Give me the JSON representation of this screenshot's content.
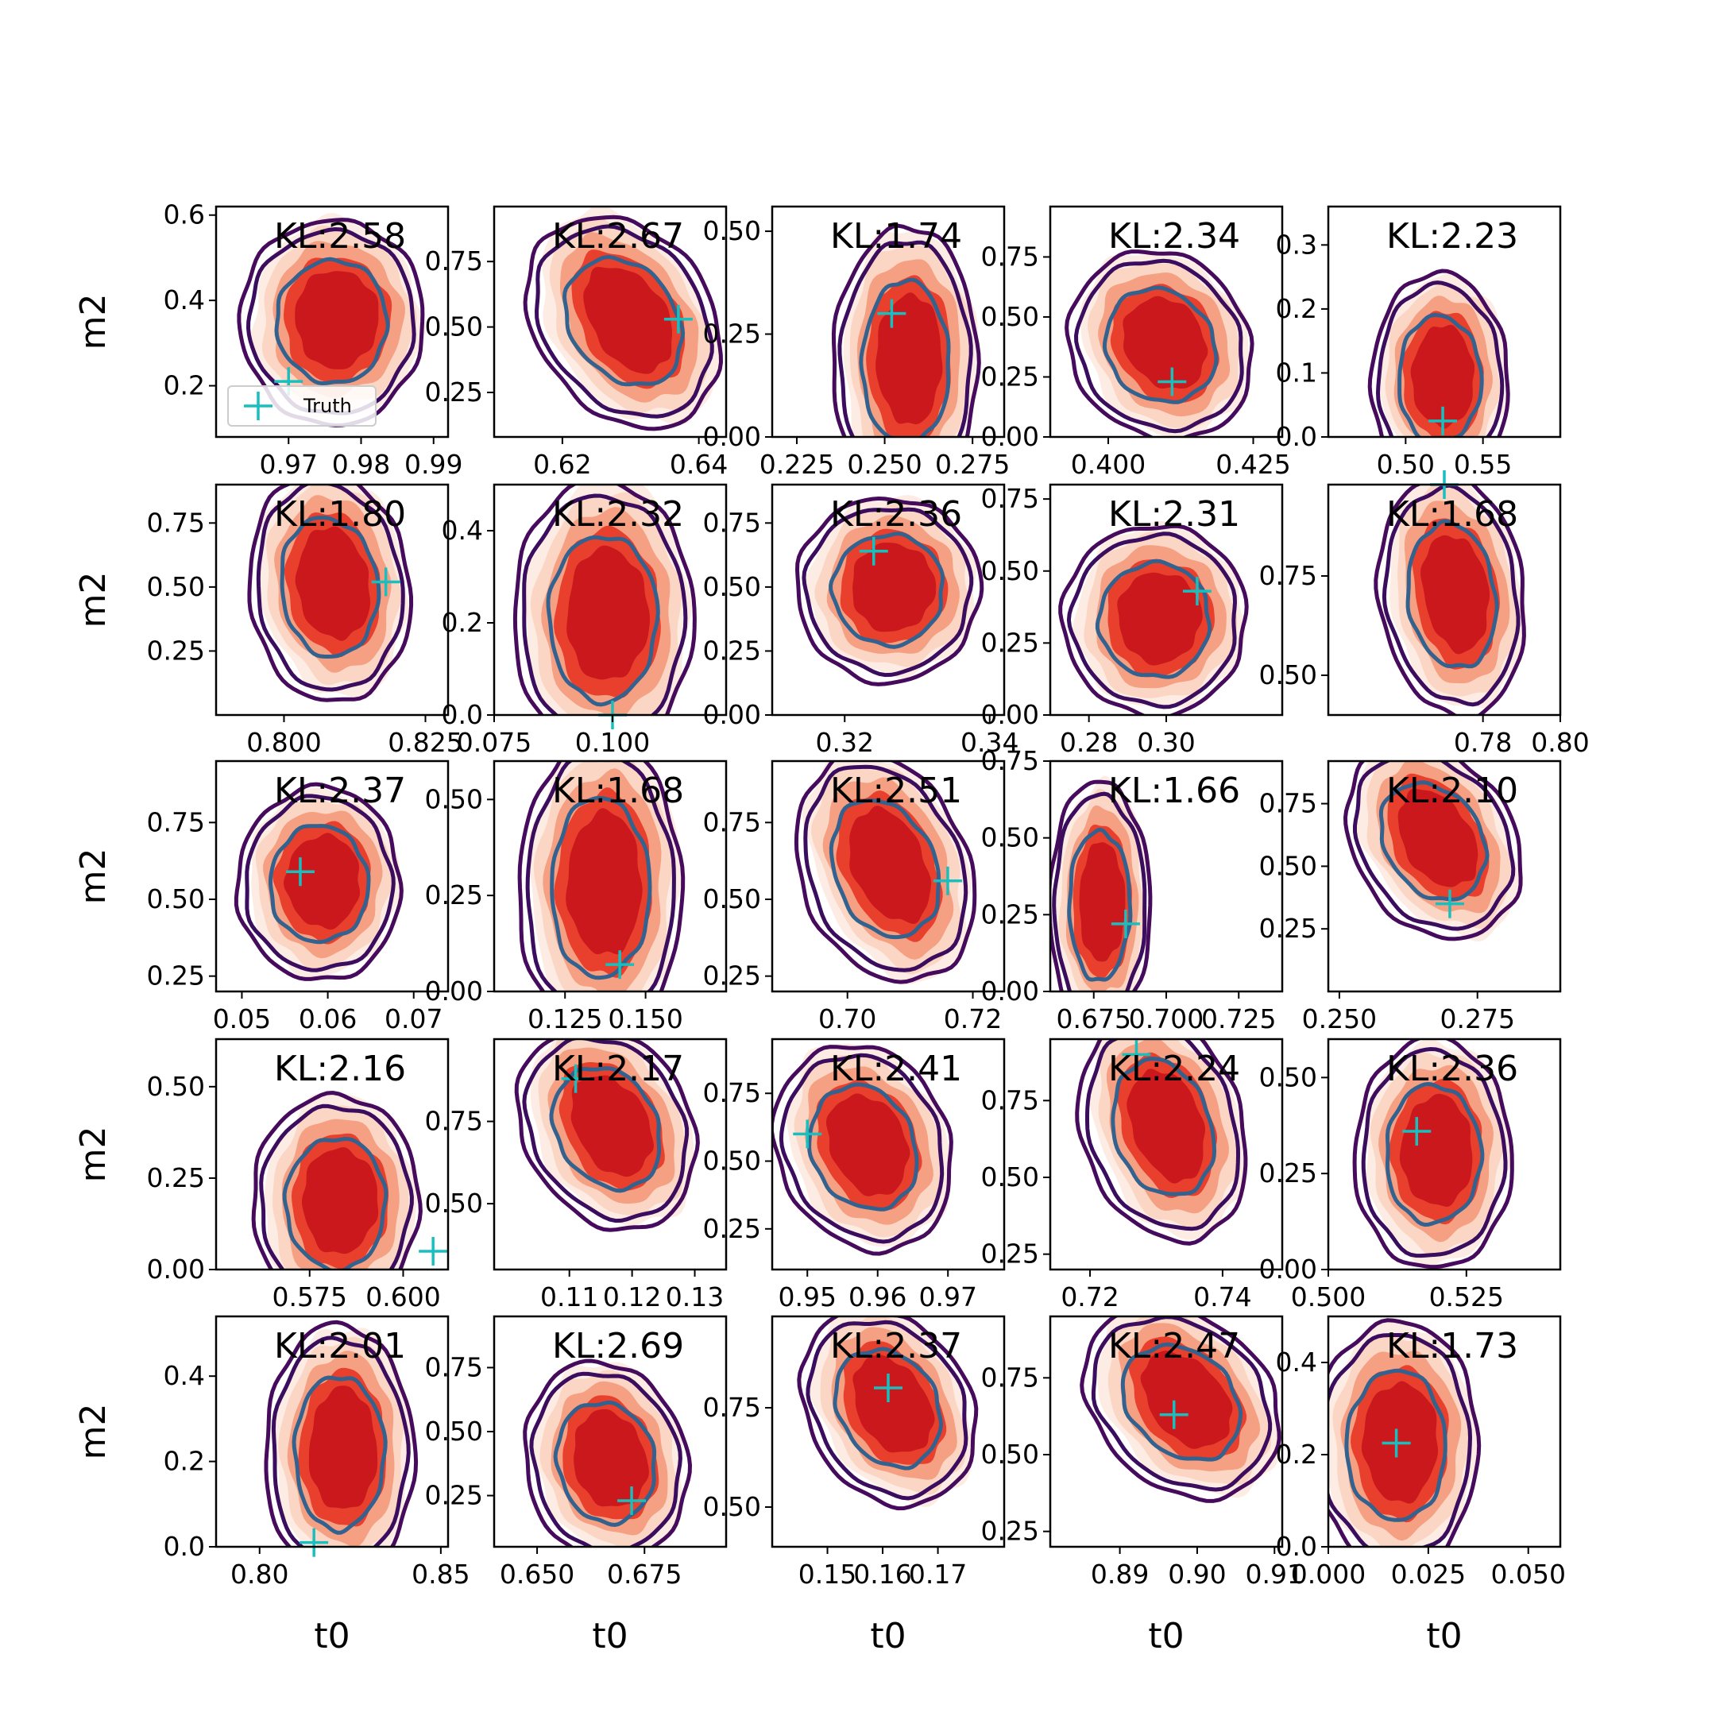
{
  "chart_data": {
    "type": "contour-grid",
    "rows": 5,
    "cols": 5,
    "x_axis_label": "t0",
    "y_axis_label": "m2",
    "legend_label": "Truth",
    "colors": {
      "fill_dark": "#cb181d",
      "fill_mid": "#e8402d",
      "fill_light": "#f6a083",
      "fill_lighter": "#fcd6c4",
      "fill_lightest": "#fdece3",
      "contour_outer": "#460b5c",
      "contour_mid": "#3b0d5f",
      "contour_inner": "#33628e",
      "truth_marker": "#17bfbf"
    },
    "panels": [
      {
        "kl": "KL:2.58",
        "xlim": [
          0.96,
          0.992
        ],
        "ylim": [
          0.08,
          0.62
        ],
        "xticks": [
          0.97,
          0.98,
          0.99
        ],
        "xticklabels": [
          "0.97",
          "0.98",
          "0.99"
        ],
        "yticks": [
          0.2,
          0.4,
          0.6
        ],
        "yticklabels": [
          "0.2",
          "0.4",
          "0.6"
        ],
        "center": [
          0.976,
          0.35
        ],
        "spread": [
          0.008,
          0.16
        ],
        "tilt": 0,
        "truth": [
          0.97,
          0.21
        ],
        "legend": true
      },
      {
        "kl": "KL:2.67",
        "xlim": [
          0.61,
          0.644
        ],
        "ylim": [
          0.08,
          0.96
        ],
        "xticks": [
          0.62,
          0.64
        ],
        "xticklabels": [
          "0.62",
          "0.64"
        ],
        "yticks": [
          0.25,
          0.5,
          0.75
        ],
        "yticklabels": [
          "0.25",
          "0.50",
          "0.75"
        ],
        "center": [
          0.629,
          0.52
        ],
        "spread": [
          0.009,
          0.26
        ],
        "tilt": -0.45,
        "truth": [
          0.637,
          0.53
        ]
      },
      {
        "kl": "KL:1.74",
        "xlim": [
          0.218,
          0.284
        ],
        "ylim": [
          0.0,
          0.56
        ],
        "xticks": [
          0.225,
          0.25,
          0.275
        ],
        "xticklabels": [
          "0.225",
          "0.250",
          "0.275"
        ],
        "yticks": [
          0.0,
          0.25,
          0.5
        ],
        "yticklabels": [
          "0.00",
          "0.25",
          "0.50"
        ],
        "center": [
          0.256,
          0.18
        ],
        "spread": [
          0.013,
          0.22
        ],
        "tilt": 0,
        "truth": [
          0.252,
          0.3
        ]
      },
      {
        "kl": "KL:2.34",
        "xlim": [
          0.39,
          0.43
        ],
        "ylim": [
          0.0,
          0.96
        ],
        "xticks": [
          0.4,
          0.425
        ],
        "xticklabels": [
          "0.400",
          "0.425"
        ],
        "yticks": [
          0.0,
          0.25,
          0.5,
          0.75
        ],
        "yticklabels": [
          "0.00",
          "0.25",
          "0.50",
          "0.75"
        ],
        "center": [
          0.409,
          0.38
        ],
        "spread": [
          0.01,
          0.26
        ],
        "tilt": -0.2,
        "truth": [
          0.411,
          0.23
        ]
      },
      {
        "kl": "KL:2.23",
        "xlim": [
          0.45,
          0.6
        ],
        "ylim": [
          0.0,
          0.36
        ],
        "xticks": [
          0.5,
          0.55
        ],
        "xticklabels": [
          "0.50",
          "0.55"
        ],
        "yticks": [
          0.0,
          0.1,
          0.2,
          0.3
        ],
        "yticklabels": [
          "0.0",
          "0.1",
          "0.2",
          "0.3"
        ],
        "center": [
          0.522,
          0.09
        ],
        "spread": [
          0.028,
          0.11
        ],
        "tilt": 0,
        "truth": [
          0.524,
          0.025
        ]
      },
      {
        "kl": "KL:1.80",
        "xlim": [
          0.788,
          0.829
        ],
        "ylim": [
          0.0,
          0.9
        ],
        "xticks": [
          0.8,
          0.825
        ],
        "xticklabels": [
          "0.800",
          "0.825"
        ],
        "yticks": [
          0.25,
          0.5,
          0.75
        ],
        "yticklabels": [
          "0.25",
          "0.50",
          "0.75"
        ],
        "center": [
          0.808,
          0.5
        ],
        "spread": [
          0.009,
          0.3
        ],
        "tilt": -0.2,
        "truth": [
          0.818,
          0.52
        ]
      },
      {
        "kl": "KL:2.32",
        "xlim": [
          0.075,
          0.124
        ],
        "ylim": [
          0.0,
          0.5
        ],
        "xticks": [
          0.075,
          0.1
        ],
        "xticklabels": [
          "0.075",
          "0.100"
        ],
        "yticks": [
          0.0,
          0.2,
          0.4
        ],
        "yticklabels": [
          "0.0",
          "0.2",
          "0.4"
        ],
        "center": [
          0.098,
          0.21
        ],
        "spread": [
          0.012,
          0.2
        ],
        "tilt": 0,
        "truth": [
          0.1,
          0.0
        ]
      },
      {
        "kl": "KL:2.36",
        "xlim": [
          0.31,
          0.342
        ],
        "ylim": [
          0.0,
          0.9
        ],
        "xticks": [
          0.32,
          0.34
        ],
        "xticklabels": [
          "0.32",
          "0.34"
        ],
        "yticks": [
          0.0,
          0.25,
          0.5,
          0.75
        ],
        "yticklabels": [
          "0.00",
          "0.25",
          "0.50",
          "0.75"
        ],
        "center": [
          0.326,
          0.49
        ],
        "spread": [
          0.008,
          0.24
        ],
        "tilt": 0,
        "truth": [
          0.324,
          0.64
        ]
      },
      {
        "kl": "KL:2.31",
        "xlim": [
          0.27,
          0.33
        ],
        "ylim": [
          0.0,
          0.8
        ],
        "xticks": [
          0.28,
          0.3
        ],
        "xticklabels": [
          "0.28",
          "0.30"
        ],
        "yticks": [
          0.0,
          0.25,
          0.5,
          0.75
        ],
        "yticklabels": [
          "0.00",
          "0.25",
          "0.50",
          "0.75"
        ],
        "center": [
          0.297,
          0.33
        ],
        "spread": [
          0.015,
          0.22
        ],
        "tilt": 0,
        "truth": [
          0.308,
          0.43
        ]
      },
      {
        "kl": "KL:1.68",
        "xlim": [
          0.74,
          0.8
        ],
        "ylim": [
          0.4,
          0.98
        ],
        "xticks": [
          0.78,
          0.8
        ],
        "xticklabels": [
          "0.78",
          "0.80"
        ],
        "yticks": [
          0.5,
          0.75
        ],
        "yticklabels": [
          "0.50",
          "0.75"
        ],
        "center": [
          0.772,
          0.7
        ],
        "spread": [
          0.012,
          0.2
        ],
        "tilt": -0.35,
        "truth": [
          0.77,
          0.98
        ]
      },
      {
        "kl": "KL:2.37",
        "xlim": [
          0.047,
          0.074
        ],
        "ylim": [
          0.2,
          0.95
        ],
        "xticks": [
          0.05,
          0.06,
          0.07
        ],
        "xticklabels": [
          "0.05",
          "0.06",
          "0.07"
        ],
        "yticks": [
          0.25,
          0.5,
          0.75
        ],
        "yticklabels": [
          "0.25",
          "0.50",
          "0.75"
        ],
        "center": [
          0.059,
          0.55
        ],
        "spread": [
          0.006,
          0.21
        ],
        "tilt": 0,
        "truth": [
          0.0568,
          0.59
        ]
      },
      {
        "kl": "KL:1.68",
        "xlim": [
          0.103,
          0.175
        ],
        "ylim": [
          0.0,
          0.6
        ],
        "xticks": [
          0.125,
          0.15
        ],
        "xticklabels": [
          "0.125",
          "0.150"
        ],
        "yticks": [
          0.0,
          0.25,
          0.5
        ],
        "yticklabels": [
          "0.00",
          "0.25",
          "0.50"
        ],
        "center": [
          0.136,
          0.27
        ],
        "spread": [
          0.016,
          0.26
        ],
        "tilt": 0,
        "truth": [
          0.142,
          0.07
        ]
      },
      {
        "kl": "KL:2.51",
        "xlim": [
          0.688,
          0.725
        ],
        "ylim": [
          0.2,
          0.95
        ],
        "xticks": [
          0.7,
          0.72
        ],
        "xticklabels": [
          "0.70",
          "0.72"
        ],
        "yticks": [
          0.25,
          0.5,
          0.75
        ],
        "yticklabels": [
          "0.25",
          "0.50",
          "0.75"
        ],
        "center": [
          0.706,
          0.6
        ],
        "spread": [
          0.009,
          0.24
        ],
        "tilt": -0.5,
        "truth": [
          0.716,
          0.56
        ]
      },
      {
        "kl": "KL:1.66",
        "xlim": [
          0.66,
          0.74
        ],
        "ylim": [
          0.0,
          0.75
        ],
        "xticks": [
          0.675,
          0.7,
          0.725
        ],
        "xticklabels": [
          "0.675",
          "0.700",
          "0.725"
        ],
        "yticks": [
          0.0,
          0.25,
          0.5,
          0.75
        ],
        "yticklabels": [
          "0.00",
          "0.25",
          "0.50",
          "0.75"
        ],
        "center": [
          0.677,
          0.28
        ],
        "spread": [
          0.011,
          0.27
        ],
        "tilt": 0,
        "truth": [
          0.686,
          0.22
        ]
      },
      {
        "kl": "KL:2.10",
        "xlim": [
          0.248,
          0.29
        ],
        "ylim": [
          0.0,
          0.92
        ],
        "xticks": [
          0.25,
          0.275
        ],
        "xticklabels": [
          "0.250",
          "0.275"
        ],
        "yticks": [
          0.25,
          0.5,
          0.75
        ],
        "yticklabels": [
          "0.25",
          "0.50",
          "0.75"
        ],
        "center": [
          0.267,
          0.6
        ],
        "spread": [
          0.01,
          0.25
        ],
        "tilt": -0.45,
        "truth": [
          0.27,
          0.35
        ]
      },
      {
        "kl": "KL:2.16",
        "xlim": [
          0.55,
          0.612
        ],
        "ylim": [
          0.0,
          0.63
        ],
        "xticks": [
          0.575,
          0.6
        ],
        "xticklabels": [
          "0.575",
          "0.600"
        ],
        "yticks": [
          0.0,
          0.25,
          0.5
        ],
        "yticklabels": [
          "0.00",
          "0.25",
          "0.50"
        ],
        "center": [
          0.582,
          0.18
        ],
        "spread": [
          0.014,
          0.2
        ],
        "tilt": 0,
        "truth": [
          0.608,
          0.05
        ]
      },
      {
        "kl": "KL:2.17",
        "xlim": [
          0.098,
          0.135
        ],
        "ylim": [
          0.3,
          1.0
        ],
        "xticks": [
          0.11,
          0.12,
          0.13
        ],
        "xticklabels": [
          "0.11",
          "0.12",
          "0.13"
        ],
        "yticks": [
          0.5,
          0.75
        ],
        "yticklabels": [
          "0.50",
          "0.75"
        ],
        "center": [
          0.116,
          0.73
        ],
        "spread": [
          0.009,
          0.2
        ],
        "tilt": -0.4,
        "truth": [
          0.111,
          0.88
        ]
      },
      {
        "kl": "KL:2.41",
        "xlim": [
          0.945,
          0.978
        ],
        "ylim": [
          0.1,
          0.95
        ],
        "xticks": [
          0.95,
          0.96,
          0.97
        ],
        "xticklabels": [
          "0.95",
          "0.96",
          "0.97"
        ],
        "yticks": [
          0.25,
          0.5,
          0.75
        ],
        "yticklabels": [
          "0.25",
          "0.50",
          "0.75"
        ],
        "center": [
          0.958,
          0.55
        ],
        "spread": [
          0.008,
          0.25
        ],
        "tilt": -0.3,
        "truth": [
          0.95,
          0.6
        ]
      },
      {
        "kl": "KL:2.24",
        "xlim": [
          0.714,
          0.749
        ],
        "ylim": [
          0.2,
          0.95
        ],
        "xticks": [
          0.72,
          0.74
        ],
        "xticklabels": [
          "0.72",
          "0.74"
        ],
        "yticks": [
          0.25,
          0.5,
          0.75
        ],
        "yticklabels": [
          "0.25",
          "0.50",
          "0.75"
        ],
        "center": [
          0.731,
          0.66
        ],
        "spread": [
          0.008,
          0.24
        ],
        "tilt": -0.45,
        "truth": [
          0.727,
          0.9
        ]
      },
      {
        "kl": "KL:2.36",
        "xlim": [
          0.5,
          0.542
        ],
        "ylim": [
          0.0,
          0.6
        ],
        "xticks": [
          0.5,
          0.525
        ],
        "xticklabels": [
          "0.500",
          "0.525"
        ],
        "yticks": [
          0.0,
          0.25,
          0.5
        ],
        "yticklabels": [
          "0.00",
          "0.25",
          "0.50"
        ],
        "center": [
          0.519,
          0.3
        ],
        "spread": [
          0.009,
          0.2
        ],
        "tilt": 0,
        "truth": [
          0.516,
          0.36
        ]
      },
      {
        "kl": "KL:2.01",
        "xlim": [
          0.788,
          0.852
        ],
        "ylim": [
          0.0,
          0.54
        ],
        "xticks": [
          0.8,
          0.85
        ],
        "xticklabels": [
          "0.80",
          "0.85"
        ],
        "yticks": [
          0.0,
          0.2,
          0.4
        ],
        "yticklabels": [
          "0.0",
          "0.2",
          "0.4"
        ],
        "center": [
          0.822,
          0.22
        ],
        "spread": [
          0.013,
          0.2
        ],
        "tilt": 0,
        "truth": [
          0.815,
          0.01
        ]
      },
      {
        "kl": "KL:2.69",
        "xlim": [
          0.64,
          0.694
        ],
        "ylim": [
          0.05,
          0.95
        ],
        "xticks": [
          0.65,
          0.675
        ],
        "xticklabels": [
          "0.650",
          "0.675"
        ],
        "yticks": [
          0.25,
          0.5,
          0.75
        ],
        "yticklabels": [
          "0.25",
          "0.50",
          "0.75"
        ],
        "center": [
          0.666,
          0.38
        ],
        "spread": [
          0.012,
          0.26
        ],
        "tilt": -0.2,
        "truth": [
          0.672,
          0.23
        ]
      },
      {
        "kl": "KL:2.37",
        "xlim": [
          0.14,
          0.182
        ],
        "ylim": [
          0.4,
          0.98
        ],
        "xticks": [
          0.15,
          0.16,
          0.17
        ],
        "xticklabels": [
          "0.15",
          "0.16",
          "0.17"
        ],
        "yticks": [
          0.5,
          0.75
        ],
        "yticklabels": [
          "0.50",
          "0.75"
        ],
        "center": [
          0.161,
          0.75
        ],
        "spread": [
          0.01,
          0.16
        ],
        "tilt": -0.4,
        "truth": [
          0.161,
          0.8
        ]
      },
      {
        "kl": "KL:2.47",
        "xlim": [
          0.881,
          0.911
        ],
        "ylim": [
          0.2,
          0.95
        ],
        "xticks": [
          0.89,
          0.9,
          0.91
        ],
        "xticklabels": [
          "0.89",
          "0.90",
          "0.91"
        ],
        "yticks": [
          0.25,
          0.5,
          0.75
        ],
        "yticklabels": [
          "0.25",
          "0.50",
          "0.75"
        ],
        "center": [
          0.898,
          0.67
        ],
        "spread": [
          0.008,
          0.2
        ],
        "tilt": -0.4,
        "truth": [
          0.897,
          0.63
        ]
      },
      {
        "kl": "KL:1.73",
        "xlim": [
          0.0,
          0.058
        ],
        "ylim": [
          0.0,
          0.5
        ],
        "xticks": [
          0.0,
          0.025,
          0.05
        ],
        "xticklabels": [
          "0.000",
          "0.025",
          "0.050"
        ],
        "yticks": [
          0.0,
          0.2,
          0.4
        ],
        "yticklabels": [
          "0.0",
          "0.2",
          "0.4"
        ],
        "center": [
          0.017,
          0.22
        ],
        "spread": [
          0.013,
          0.18
        ],
        "tilt": 0,
        "truth": [
          0.017,
          0.225
        ]
      }
    ]
  }
}
